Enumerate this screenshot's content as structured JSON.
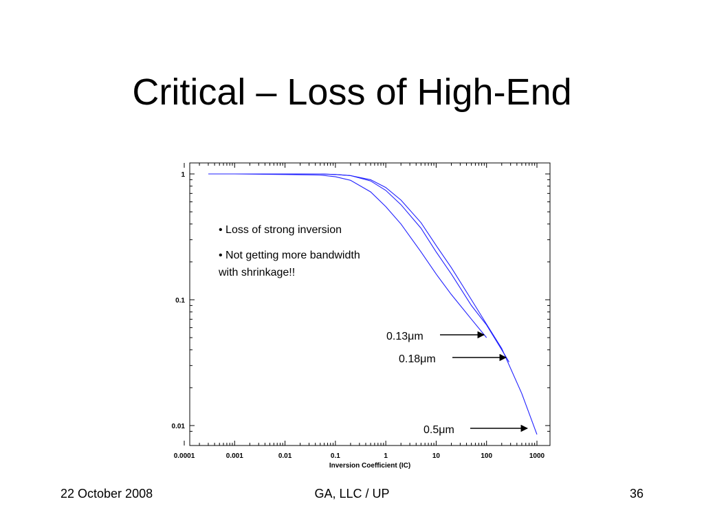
{
  "slide": {
    "title": "Critical – Loss of High-End",
    "footer_left": "22 October 2008",
    "footer_center": "GA, LLC / UP",
    "footer_right": "36"
  },
  "chart_data": {
    "type": "line",
    "xlabel": "Inversion Coefficient (IC)",
    "ylabel": "",
    "xscale": "log",
    "yscale": "log",
    "xlim": [
      0.0001,
      1000
    ],
    "ylim": [
      0.0085,
      1.2
    ],
    "xticks": [
      "0.0001",
      "0.001",
      "0.01",
      "0.1",
      "1",
      "10",
      "100",
      "1000"
    ],
    "yticks": [
      "1",
      "0.1",
      "0.01"
    ],
    "line_color": "#1f1fff",
    "annotations": [
      "• Loss of strong inversion",
      "• Not getting more bandwidth",
      "with shrinkage!!"
    ],
    "series": [
      {
        "name": "0.13μm",
        "x": [
          0.0003,
          0.001,
          0.01,
          0.05,
          0.1,
          0.2,
          0.5,
          1,
          2,
          5,
          10,
          20,
          50,
          100
        ],
        "y": [
          1.0,
          1.0,
          0.99,
          0.98,
          0.95,
          0.89,
          0.72,
          0.55,
          0.4,
          0.24,
          0.16,
          0.11,
          0.07,
          0.05
        ]
      },
      {
        "name": "0.18μm",
        "x": [
          0.0003,
          0.001,
          0.01,
          0.05,
          0.1,
          0.2,
          0.5,
          1,
          2,
          5,
          10,
          20,
          50,
          100,
          200,
          280
        ],
        "y": [
          1.0,
          1.0,
          1.0,
          1.0,
          0.99,
          0.97,
          0.88,
          0.74,
          0.57,
          0.37,
          0.24,
          0.16,
          0.09,
          0.063,
          0.04,
          0.032
        ]
      },
      {
        "name": "0.5μm",
        "x": [
          0.0003,
          0.001,
          0.01,
          0.05,
          0.1,
          0.2,
          0.5,
          1,
          2,
          5,
          10,
          20,
          50,
          100,
          200,
          500,
          1000
        ],
        "y": [
          1.0,
          1.0,
          1.0,
          1.0,
          0.99,
          0.97,
          0.9,
          0.78,
          0.62,
          0.41,
          0.27,
          0.18,
          0.1,
          0.064,
          0.041,
          0.018,
          0.0085
        ]
      }
    ],
    "labels": [
      {
        "text": "0.13μm",
        "series": "0.13μm"
      },
      {
        "text": "0.18μm",
        "series": "0.18μm"
      },
      {
        "text": "0.5μm",
        "series": "0.5μm"
      }
    ]
  }
}
